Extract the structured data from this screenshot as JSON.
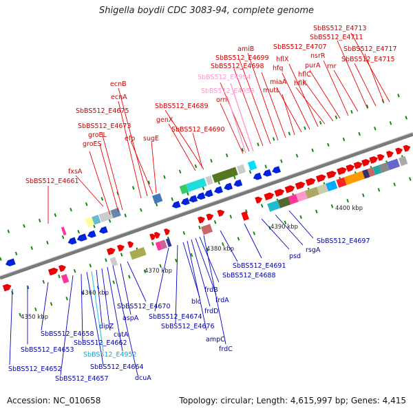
{
  "title": "Shigella boydii CDC 3083-94, complete genome",
  "footer": {
    "accession": "Accession: NC_010658",
    "topology": "Topology: circular; Length: 4,615,997 bp; Genes: 4,415"
  },
  "ticks": [
    {
      "text": "4350 kbp"
    },
    {
      "text": "4360 kbp"
    },
    {
      "text": "4370 kbp"
    },
    {
      "text": "4380 kbp"
    },
    {
      "text": "4390 kbp"
    },
    {
      "text": "4400 kbp"
    }
  ],
  "colors": {
    "forward": "#ff0000",
    "reverse": "#0000cc",
    "rna": "#00bfff",
    "pseudo": "#ff99cc",
    "backbone": "#888888"
  },
  "labels_forward": [
    {
      "text": "SbBS512_E4713"
    },
    {
      "text": "SbBS512_E4711"
    },
    {
      "text": "SbBS512_E4717"
    },
    {
      "text": "SbBS512_E4707"
    },
    {
      "text": "nsrR"
    },
    {
      "text": "amiB"
    },
    {
      "text": "hflX"
    },
    {
      "text": "purA"
    },
    {
      "text": "SbBS512_E4715"
    },
    {
      "text": "rnr"
    },
    {
      "text": "SbBS512_E4699"
    },
    {
      "text": "SbBS512_E4698"
    },
    {
      "text": "hfq"
    },
    {
      "text": "hflC"
    },
    {
      "text": "SbBS512_E4954",
      "kind": "pseudo"
    },
    {
      "text": "miaA"
    },
    {
      "text": "hflK"
    },
    {
      "text": "mutL"
    },
    {
      "text": "SbBS512_E4953",
      "kind": "pseudo"
    },
    {
      "text": "ecnB"
    },
    {
      "text": "orn"
    },
    {
      "text": "ecnA"
    },
    {
      "text": "SbBS512_E4689"
    },
    {
      "text": "SbBS512_E4675"
    },
    {
      "text": "genX"
    },
    {
      "text": "SbBS512_E4673"
    },
    {
      "text": "SbBS512_E4690"
    },
    {
      "text": "groEL"
    },
    {
      "text": "efp"
    },
    {
      "text": "sugE"
    },
    {
      "text": "groES"
    },
    {
      "text": "fxsA"
    },
    {
      "text": "SbBS512_E4661"
    }
  ],
  "labels_reverse": [
    {
      "text": "SbBS512_E4697"
    },
    {
      "text": "rsgA"
    },
    {
      "text": "psd"
    },
    {
      "text": "SbBS512_E4691"
    },
    {
      "text": "SbBS512_E4688"
    },
    {
      "text": "frdB"
    },
    {
      "text": "frdA"
    },
    {
      "text": "blc"
    },
    {
      "text": "SbBS512_E4670"
    },
    {
      "text": "frdD"
    },
    {
      "text": "aspA"
    },
    {
      "text": "SbBS512_E4674"
    },
    {
      "text": "SbBS512_E4676"
    },
    {
      "text": "SbBS512_E4658"
    },
    {
      "text": "dipZ"
    },
    {
      "text": "cutA"
    },
    {
      "text": "ampC"
    },
    {
      "text": "SbBS512_E4653"
    },
    {
      "text": "SbBS512_E4662"
    },
    {
      "text": "frdC"
    },
    {
      "text": "SbBS512_E4952",
      "kind": "rna"
    },
    {
      "text": "SbBS512_E4664"
    },
    {
      "text": "SbBS512_E4652"
    },
    {
      "text": "dcuA"
    },
    {
      "text": "SbBS512_E4657"
    }
  ]
}
